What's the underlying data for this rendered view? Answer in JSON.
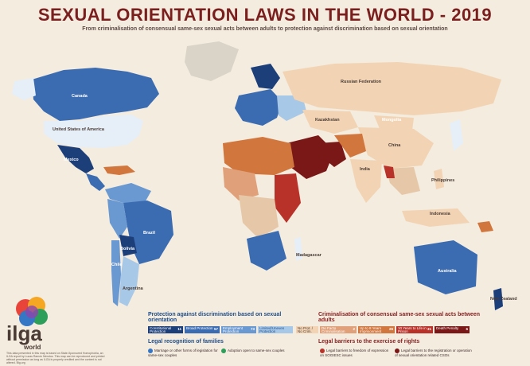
{
  "header": {
    "title": "SEXUAL ORIENTATION LAWS IN THE WORLD - 2019",
    "subtitle": "From criminalisation of consensual same-sex sexual acts between adults to protection against discrimination based on sexual orientation"
  },
  "map": {
    "labels": {
      "canada": "Canada",
      "usa": "United States of America",
      "mexico": "Mexico",
      "brazil": "Brazil",
      "argentina": "Argentina",
      "bolivia": "Bolivia",
      "chile": "Chile",
      "russia": "Russian Federation",
      "kazakhstan": "Kazakhstan",
      "mongolia": "Mongolia",
      "china": "China",
      "india": "India",
      "indonesia": "Indonesia",
      "australia": "Australia",
      "new_zealand": "New Zealand",
      "philippines": "Philippines",
      "madagascar": "Madagascar"
    }
  },
  "legend": {
    "protection_heading": "Protection against discrimination based on sexual orientation",
    "protection_items": [
      {
        "label": "Constitutional Protection",
        "count": "11",
        "color": "#1c3f7a"
      },
      {
        "label": "Broad Protection",
        "count": "57",
        "color": "#3b6cb1"
      },
      {
        "label": "Employment Protection",
        "count": "73",
        "color": "#6a98d0"
      },
      {
        "label": "Limited/Uneven Protection",
        "count": "",
        "color": "#a8c8e8"
      }
    ],
    "no_prot_label": "No Prot. / No Crim.",
    "criminalisation_heading": "Criminalisation of consensual same-sex sexual acts between adults",
    "criminalisation_items": [
      {
        "label": "De Facto Criminalisation",
        "count": "2",
        "color": "#e0a07a"
      },
      {
        "label": "Up to 8 Years Imprisonment",
        "count": "26",
        "color": "#d1763c"
      },
      {
        "label": "10 Years to Life in Prison",
        "count": "31",
        "color": "#b8322a"
      },
      {
        "label": "Death Penalty",
        "count": "6",
        "color": "#7a1717"
      }
    ],
    "families_heading": "Legal recognition of families",
    "families_items": [
      "Marriage or other forms of legislation for same-sex couples",
      "Adoption open to same-sex couples"
    ],
    "barriers_heading": "Legal barriers to the exercise of rights",
    "barriers_items": [
      "Legal barriers to freedom of expression on SOGIESC issues",
      "Legal barriers to the registration or operation of sexual orientation related CSOs"
    ]
  },
  "logo": {
    "name": "ilga",
    "sub": "world"
  },
  "footnote": "This data presented in this map is based on State-Sponsored Homophobia, an ILGA report by Lucas Ramón Mendos. This map can be reproduced and printed without permission as long as ILGA is properly credited and the content is not altered. Big.org"
}
